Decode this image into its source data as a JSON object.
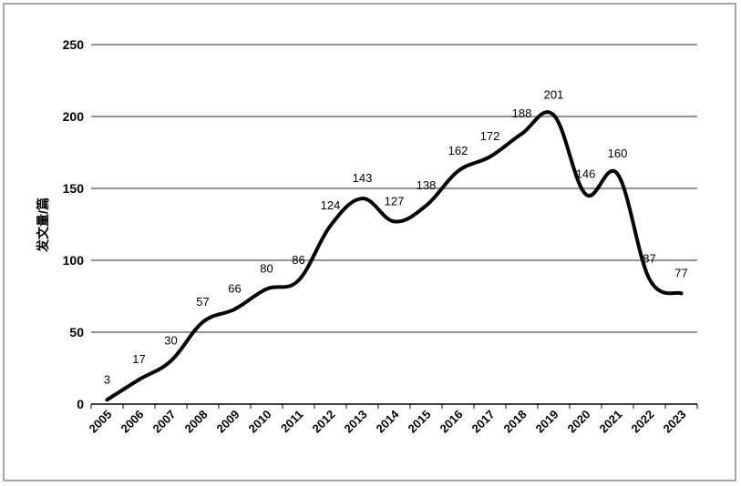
{
  "chart_data": {
    "type": "line",
    "title": "",
    "xlabel": "",
    "ylabel": "发文量/篇",
    "ylim": [
      0,
      250
    ],
    "yticks": [
      0,
      50,
      100,
      150,
      200,
      250
    ],
    "grid": true,
    "categories": [
      "2005",
      "2006",
      "2007",
      "2008",
      "2009",
      "2010",
      "2011",
      "2012",
      "2013",
      "2014",
      "2015",
      "2016",
      "2017",
      "2018",
      "2019",
      "2020",
      "2021",
      "2022",
      "2023"
    ],
    "series": [
      {
        "name": "发文量",
        "values": [
          3,
          17,
          30,
          57,
          66,
          80,
          86,
          124,
          143,
          127,
          138,
          162,
          172,
          188,
          201,
          146,
          160,
          87,
          77
        ]
      }
    ],
    "line_color": "#000000"
  }
}
